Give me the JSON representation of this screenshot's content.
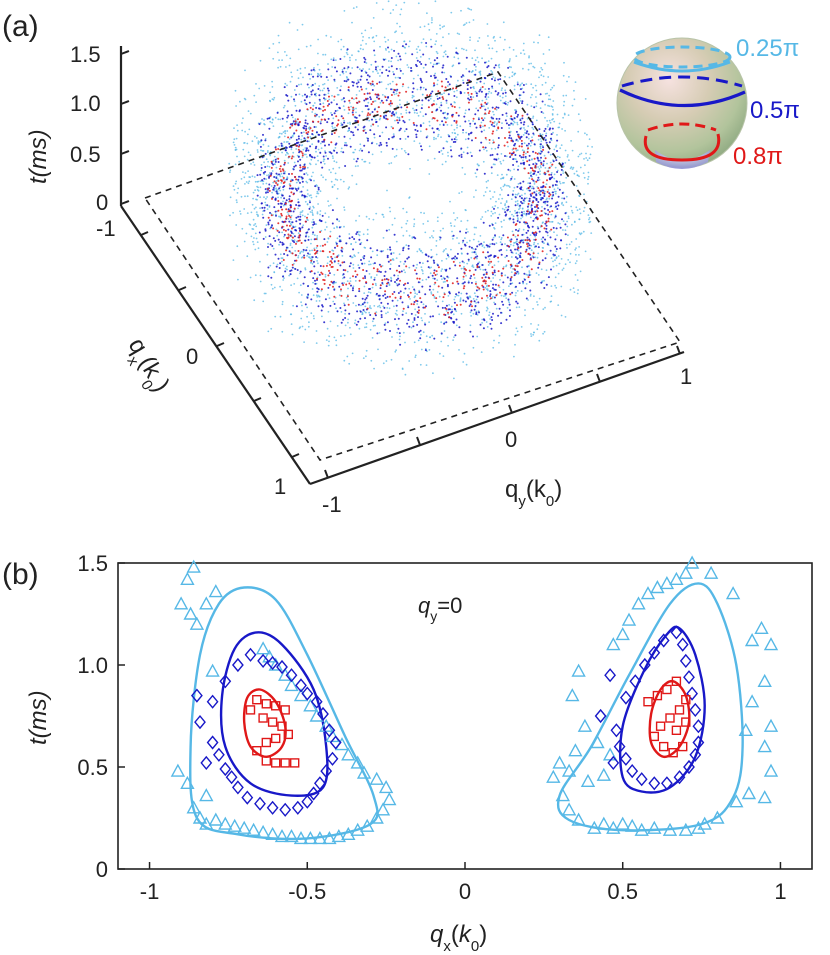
{
  "colors": {
    "light": "#56b8e6",
    "mid": "#1818c8",
    "red": "#e01818",
    "axis": "#222222"
  },
  "chart_data": [
    {
      "panel": "(a)",
      "type": "scatter",
      "projection": "3d",
      "zlabel": "t(ms)",
      "xlabel": "q_x(k_0)",
      "ylabel": "q_y(k_0)",
      "z_ticks": [
        "0",
        "0.5",
        "1.0",
        "1.5"
      ],
      "qx_ticks": [
        "-1",
        "0",
        "1"
      ],
      "qy_ticks": [
        "-1",
        "0",
        "1"
      ],
      "zlim": [
        0,
        1.5
      ],
      "qxlim": [
        -1,
        1
      ],
      "qylim": [
        -1,
        1
      ],
      "series": [
        {
          "name": "0.25π",
          "color_key": "light",
          "r_range": [
            0.5,
            0.92
          ],
          "t_range": [
            0.15,
            1.5
          ]
        },
        {
          "name": "0.5π",
          "color_key": "mid",
          "r_range": [
            0.55,
            0.78
          ],
          "t_range": [
            0.3,
            1.2
          ]
        },
        {
          "name": "0.8π",
          "color_key": "red",
          "r_range": [
            0.6,
            0.72
          ],
          "t_range": [
            0.5,
            0.95
          ]
        }
      ],
      "legend": [
        "0.25π",
        "0.5π",
        "0.8π"
      ]
    },
    {
      "panel": "(b)",
      "type": "scatter",
      "title": "q_y=0",
      "xlabel": "q_x(k_0)",
      "ylabel": "t(ms)",
      "xlim": [
        -1.1,
        1.1
      ],
      "ylim": [
        0,
        1.5
      ],
      "xticks": [
        -1,
        -0.5,
        0,
        0.5,
        1
      ],
      "xtick_labels": [
        "-1",
        "-0.5",
        "0",
        "0.5",
        "1"
      ],
      "yticks": [
        0,
        0.5,
        1.0,
        1.5
      ],
      "ytick_labels": [
        "0",
        "0.5",
        "1.0",
        "1.5"
      ],
      "series": [
        {
          "name": "0.25π",
          "marker": "triangle",
          "color_key": "light",
          "points": [
            [
              -0.86,
              1.48
            ],
            [
              -0.88,
              1.42
            ],
            [
              -0.9,
              1.3
            ],
            [
              -0.87,
              1.25
            ],
            [
              -0.79,
              1.36
            ],
            [
              -0.82,
              1.3
            ],
            [
              -0.85,
              1.2
            ],
            [
              -0.8,
              0.97
            ],
            [
              -0.91,
              0.48
            ],
            [
              -0.88,
              0.42
            ],
            [
              -0.82,
              0.36
            ],
            [
              -0.86,
              0.3
            ],
            [
              -0.84,
              0.25
            ],
            [
              -0.82,
              0.22
            ],
            [
              -0.79,
              0.24
            ],
            [
              -0.76,
              0.22
            ],
            [
              -0.73,
              0.21
            ],
            [
              -0.7,
              0.2
            ],
            [
              -0.67,
              0.19
            ],
            [
              -0.64,
              0.18
            ],
            [
              -0.61,
              0.17
            ],
            [
              -0.58,
              0.16
            ],
            [
              -0.55,
              0.16
            ],
            [
              -0.52,
              0.15
            ],
            [
              -0.49,
              0.15
            ],
            [
              -0.46,
              0.15
            ],
            [
              -0.43,
              0.15
            ],
            [
              -0.4,
              0.16
            ],
            [
              -0.37,
              0.17
            ],
            [
              -0.34,
              0.19
            ],
            [
              -0.31,
              0.21
            ],
            [
              -0.28,
              0.25
            ],
            [
              -0.26,
              0.29
            ],
            [
              -0.24,
              0.34
            ],
            [
              -0.25,
              0.4
            ],
            [
              -0.28,
              0.44
            ],
            [
              -0.32,
              0.47
            ],
            [
              -0.34,
              0.52
            ],
            [
              -0.37,
              0.56
            ],
            [
              -0.39,
              0.61
            ],
            [
              -0.42,
              0.65
            ],
            [
              -0.44,
              0.7
            ],
            [
              -0.47,
              0.75
            ],
            [
              -0.49,
              0.8
            ],
            [
              -0.52,
              0.85
            ],
            [
              -0.55,
              0.9
            ],
            [
              -0.57,
              0.95
            ],
            [
              -0.6,
              1.0
            ],
            [
              -0.62,
              1.04
            ],
            [
              -0.64,
              1.08
            ],
            [
              0.28,
              0.45
            ],
            [
              0.31,
              0.36
            ],
            [
              0.33,
              0.29
            ],
            [
              0.36,
              0.24
            ],
            [
              0.41,
              0.2
            ],
            [
              0.44,
              0.22
            ],
            [
              0.47,
              0.2
            ],
            [
              0.5,
              0.22
            ],
            [
              0.53,
              0.21
            ],
            [
              0.56,
              0.19
            ],
            [
              0.6,
              0.2
            ],
            [
              0.65,
              0.19
            ],
            [
              0.7,
              0.19
            ],
            [
              0.74,
              0.2
            ],
            [
              0.76,
              0.22
            ],
            [
              0.8,
              0.25
            ],
            [
              0.86,
              0.33
            ],
            [
              0.9,
              0.37
            ],
            [
              0.95,
              0.35
            ],
            [
              0.97,
              0.48
            ],
            [
              0.95,
              0.6
            ],
            [
              0.89,
              0.68
            ],
            [
              0.97,
              0.7
            ],
            [
              0.91,
              0.82
            ],
            [
              0.95,
              0.92
            ],
            [
              0.97,
              1.1
            ],
            [
              0.91,
              1.12
            ],
            [
              0.94,
              1.18
            ],
            [
              0.85,
              1.35
            ],
            [
              0.78,
              1.45
            ],
            [
              0.72,
              1.5
            ],
            [
              0.7,
              1.45
            ],
            [
              0.67,
              1.42
            ],
            [
              0.64,
              1.4
            ],
            [
              0.61,
              1.38
            ],
            [
              0.58,
              1.35
            ],
            [
              0.55,
              1.3
            ],
            [
              0.52,
              1.22
            ],
            [
              0.5,
              1.15
            ],
            [
              0.47,
              1.1
            ],
            [
              0.36,
              0.97
            ],
            [
              0.34,
              0.85
            ],
            [
              0.38,
              0.7
            ],
            [
              0.42,
              0.62
            ],
            [
              0.46,
              0.56
            ],
            [
              0.44,
              0.46
            ],
            [
              0.39,
              0.43
            ],
            [
              0.33,
              0.48
            ],
            [
              0.3,
              0.52
            ],
            [
              0.35,
              0.58
            ]
          ]
        },
        {
          "name": "0.5π",
          "marker": "diamond",
          "color_key": "mid",
          "points": [
            [
              -0.84,
              0.72
            ],
            [
              -0.8,
              0.82
            ],
            [
              -0.76,
              0.92
            ],
            [
              -0.72,
              1.0
            ],
            [
              -0.68,
              1.05
            ],
            [
              -0.64,
              1.02
            ],
            [
              -0.61,
              1.01
            ],
            [
              -0.58,
              0.99
            ],
            [
              -0.55,
              0.95
            ],
            [
              -0.52,
              0.9
            ],
            [
              -0.5,
              0.86
            ],
            [
              -0.47,
              0.82
            ],
            [
              -0.45,
              0.76
            ],
            [
              -0.43,
              0.68
            ],
            [
              -0.41,
              0.62
            ],
            [
              -0.42,
              0.54
            ],
            [
              -0.44,
              0.48
            ],
            [
              -0.46,
              0.42
            ],
            [
              -0.48,
              0.37
            ],
            [
              -0.5,
              0.33
            ],
            [
              -0.53,
              0.3
            ],
            [
              -0.57,
              0.29
            ],
            [
              -0.61,
              0.3
            ],
            [
              -0.65,
              0.32
            ],
            [
              -0.69,
              0.35
            ],
            [
              -0.72,
              0.4
            ],
            [
              -0.76,
              0.49
            ],
            [
              -0.78,
              0.56
            ],
            [
              -0.8,
              0.62
            ],
            [
              -0.82,
              0.52
            ],
            [
              -0.74,
              0.45
            ],
            [
              -0.85,
              0.85
            ],
            [
              0.48,
              0.68
            ],
            [
              0.49,
              0.6
            ],
            [
              0.51,
              0.54
            ],
            [
              0.53,
              0.48
            ],
            [
              0.56,
              0.44
            ],
            [
              0.6,
              0.42
            ],
            [
              0.64,
              0.42
            ],
            [
              0.68,
              0.45
            ],
            [
              0.71,
              0.5
            ],
            [
              0.73,
              0.56
            ],
            [
              0.74,
              0.62
            ],
            [
              0.74,
              0.7
            ],
            [
              0.73,
              0.78
            ],
            [
              0.72,
              0.86
            ],
            [
              0.71,
              0.94
            ],
            [
              0.7,
              1.02
            ],
            [
              0.69,
              1.1
            ],
            [
              0.67,
              1.16
            ],
            [
              0.63,
              1.12
            ],
            [
              0.6,
              1.06
            ],
            [
              0.57,
              1.0
            ],
            [
              0.54,
              0.92
            ],
            [
              0.51,
              0.84
            ],
            [
              0.46,
              0.95
            ],
            [
              0.43,
              0.75
            ],
            [
              0.47,
              0.52
            ]
          ]
        },
        {
          "name": "0.8π",
          "marker": "square",
          "color_key": "red",
          "points": [
            [
              -0.66,
              0.83
            ],
            [
              -0.63,
              0.81
            ],
            [
              -0.6,
              0.8
            ],
            [
              -0.57,
              0.78
            ],
            [
              -0.64,
              0.74
            ],
            [
              -0.61,
              0.72
            ],
            [
              -0.58,
              0.7
            ],
            [
              -0.56,
              0.66
            ],
            [
              -0.6,
              0.64
            ],
            [
              -0.63,
              0.62
            ],
            [
              -0.66,
              0.58
            ],
            [
              -0.63,
              0.53
            ],
            [
              -0.6,
              0.52
            ],
            [
              -0.57,
              0.52
            ],
            [
              -0.54,
              0.52
            ],
            [
              -0.68,
              0.78
            ],
            [
              0.58,
              0.82
            ],
            [
              0.61,
              0.85
            ],
            [
              0.64,
              0.88
            ],
            [
              0.67,
              0.92
            ],
            [
              0.7,
              0.83
            ],
            [
              0.68,
              0.78
            ],
            [
              0.65,
              0.74
            ],
            [
              0.62,
              0.7
            ],
            [
              0.6,
              0.65
            ],
            [
              0.63,
              0.6
            ],
            [
              0.66,
              0.57
            ],
            [
              0.69,
              0.6
            ],
            [
              0.67,
              0.68
            ],
            [
              0.7,
              0.72
            ]
          ]
        }
      ],
      "fit_contours": [
        {
          "name": "0.25π fit",
          "color_key": "light"
        },
        {
          "name": "0.5π fit",
          "color_key": "mid"
        },
        {
          "name": "0.8π fit",
          "color_key": "red"
        }
      ]
    }
  ]
}
